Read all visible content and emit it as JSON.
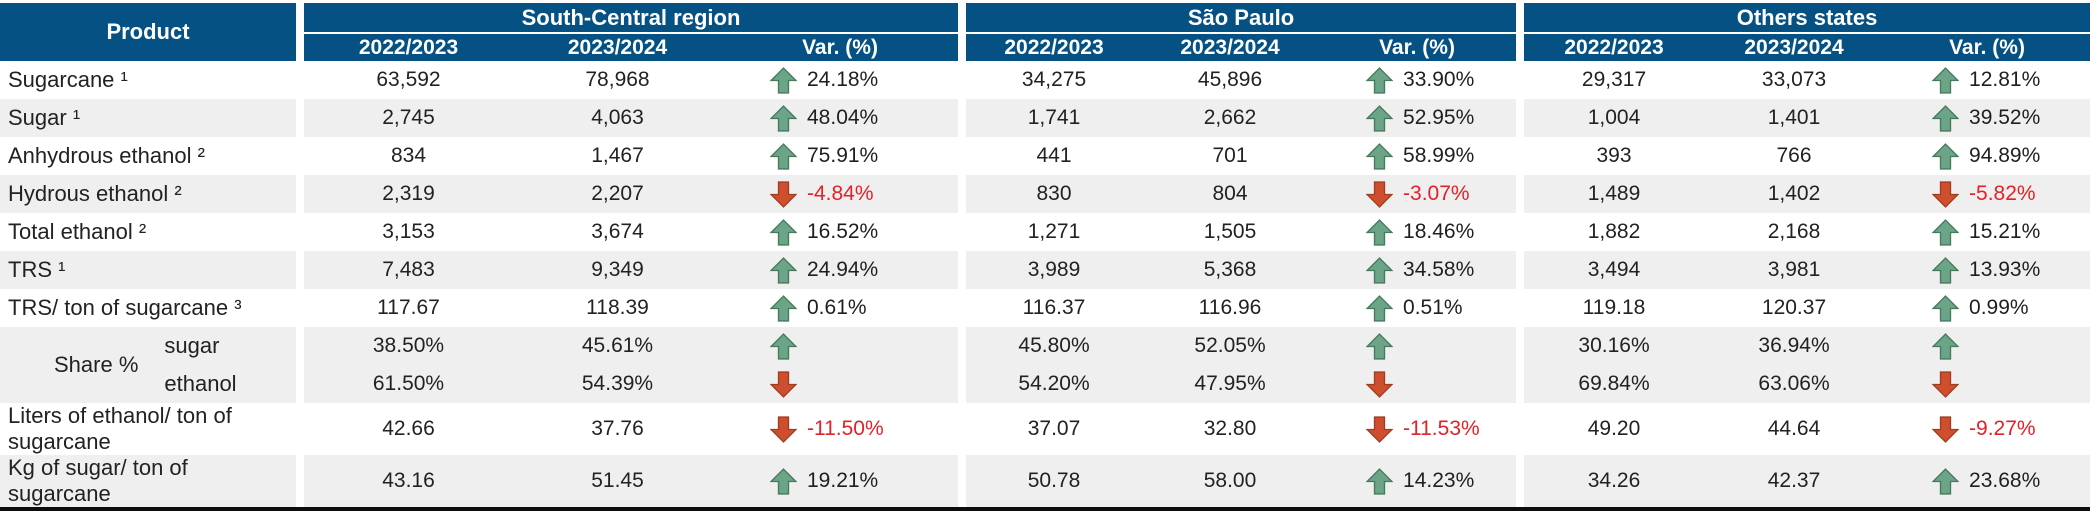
{
  "chart_data": {
    "type": "table",
    "product_header": "Product",
    "groups": [
      {
        "label": "South-Central region"
      },
      {
        "label": "São Paulo"
      },
      {
        "label": "Others states"
      }
    ],
    "subcolumns": [
      "2022/2023",
      "2023/2024",
      "Var. (%)"
    ],
    "rows": [
      {
        "product": "Sugarcane ¹",
        "cells": [
          {
            "v1": "63,592",
            "v2": "78,968",
            "var": "24.18%",
            "dir": "up"
          },
          {
            "v1": "34,275",
            "v2": "45,896",
            "var": "33.90%",
            "dir": "up"
          },
          {
            "v1": "29,317",
            "v2": "33,073",
            "var": "12.81%",
            "dir": "up"
          }
        ]
      },
      {
        "product": "Sugar ¹",
        "cells": [
          {
            "v1": "2,745",
            "v2": "4,063",
            "var": "48.04%",
            "dir": "up"
          },
          {
            "v1": "1,741",
            "v2": "2,662",
            "var": "52.95%",
            "dir": "up"
          },
          {
            "v1": "1,004",
            "v2": "1,401",
            "var": "39.52%",
            "dir": "up"
          }
        ]
      },
      {
        "product": "Anhydrous ethanol ²",
        "cells": [
          {
            "v1": "834",
            "v2": "1,467",
            "var": "75.91%",
            "dir": "up"
          },
          {
            "v1": "441",
            "v2": "701",
            "var": "58.99%",
            "dir": "up"
          },
          {
            "v1": "393",
            "v2": "766",
            "var": "94.89%",
            "dir": "up"
          }
        ]
      },
      {
        "product": "Hydrous ethanol ²",
        "cells": [
          {
            "v1": "2,319",
            "v2": "2,207",
            "var": "-4.84%",
            "dir": "down"
          },
          {
            "v1": "830",
            "v2": "804",
            "var": "-3.07%",
            "dir": "down"
          },
          {
            "v1": "1,489",
            "v2": "1,402",
            "var": "-5.82%",
            "dir": "down"
          }
        ]
      },
      {
        "product": "Total ethanol ²",
        "cells": [
          {
            "v1": "3,153",
            "v2": "3,674",
            "var": "16.52%",
            "dir": "up"
          },
          {
            "v1": "1,271",
            "v2": "1,505",
            "var": "18.46%",
            "dir": "up"
          },
          {
            "v1": "1,882",
            "v2": "2,168",
            "var": "15.21%",
            "dir": "up"
          }
        ]
      },
      {
        "product": "TRS ¹",
        "cells": [
          {
            "v1": "7,483",
            "v2": "9,349",
            "var": "24.94%",
            "dir": "up"
          },
          {
            "v1": "3,989",
            "v2": "5,368",
            "var": "34.58%",
            "dir": "up"
          },
          {
            "v1": "3,494",
            "v2": "3,981",
            "var": "13.93%",
            "dir": "up"
          }
        ]
      },
      {
        "product": "TRS/ ton of sugarcane ³",
        "cells": [
          {
            "v1": "117.67",
            "v2": "118.39",
            "var": "0.61%",
            "dir": "up"
          },
          {
            "v1": "116.37",
            "v2": "116.96",
            "var": "0.51%",
            "dir": "up"
          },
          {
            "v1": "119.18",
            "v2": "120.37",
            "var": "0.99%",
            "dir": "up"
          }
        ]
      },
      {
        "share": true,
        "label": "Share %",
        "sub_rows": [
          {
            "product": "sugar",
            "cells": [
              {
                "v1": "38.50%",
                "v2": "45.61%",
                "var": "",
                "dir": "up"
              },
              {
                "v1": "45.80%",
                "v2": "52.05%",
                "var": "",
                "dir": "up"
              },
              {
                "v1": "30.16%",
                "v2": "36.94%",
                "var": "",
                "dir": "up"
              }
            ]
          },
          {
            "product": "ethanol",
            "cells": [
              {
                "v1": "61.50%",
                "v2": "54.39%",
                "var": "",
                "dir": "down"
              },
              {
                "v1": "54.20%",
                "v2": "47.95%",
                "var": "",
                "dir": "down"
              },
              {
                "v1": "69.84%",
                "v2": "63.06%",
                "var": "",
                "dir": "down"
              }
            ]
          }
        ]
      },
      {
        "product": "Liters of ethanol/ ton of sugarcane",
        "cells": [
          {
            "v1": "42.66",
            "v2": "37.76",
            "var": "-11.50%",
            "dir": "down"
          },
          {
            "v1": "37.07",
            "v2": "32.80",
            "var": "-11.53%",
            "dir": "down"
          },
          {
            "v1": "49.20",
            "v2": "44.64",
            "var": "-9.27%",
            "dir": "down"
          }
        ]
      },
      {
        "product": "Kg of sugar/ ton of sugarcane",
        "cells": [
          {
            "v1": "43.16",
            "v2": "51.45",
            "var": "19.21%",
            "dir": "up"
          },
          {
            "v1": "50.78",
            "v2": "58.00",
            "var": "14.23%",
            "dir": "up"
          },
          {
            "v1": "34.26",
            "v2": "42.37",
            "var": "23.68%",
            "dir": "up"
          }
        ]
      }
    ]
  },
  "colors": {
    "header_bg": "#055183",
    "row_alt_bg": "#efefef",
    "up_arrow": "#6ba487",
    "down_arrow": "#cf4e2e",
    "negative_text": "#e22128",
    "body_text": "#222222",
    "bottom_border": "#0d0d0d"
  },
  "icons": {
    "up": "up-arrow-icon",
    "down": "down-arrow-icon"
  }
}
